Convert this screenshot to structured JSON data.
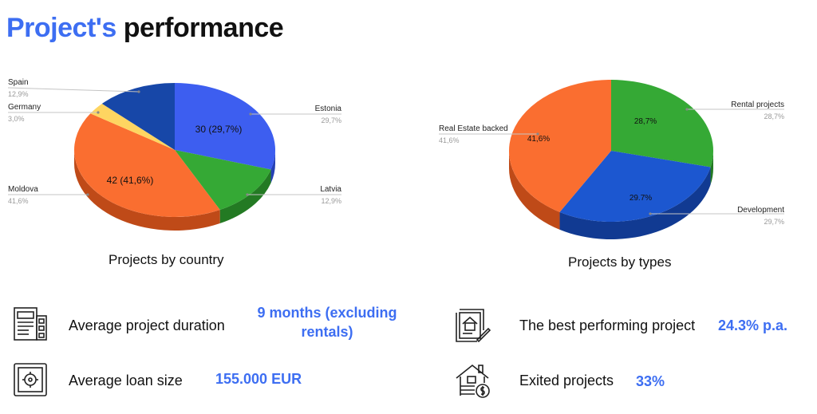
{
  "title": {
    "accent": "Project's",
    "rest": " performance"
  },
  "colors": {
    "accent": "#3d6ef2"
  },
  "chart_data": [
    {
      "type": "pie",
      "title": "Projects by country",
      "slices": [
        {
          "label": "Estonia",
          "value": 30,
          "percent": "29,7%",
          "inside_label": "30 (29,7%)",
          "color": "#3d5ef0",
          "dark": "#2540b5"
        },
        {
          "label": "Latvia",
          "value": 13,
          "percent": "12,9%",
          "inside_label": "",
          "color": "#35a935",
          "dark": "#237a23"
        },
        {
          "label": "Moldova",
          "value": 42,
          "percent": "41,6%",
          "inside_label": "42 (41,6%)",
          "color": "#fa6e30",
          "dark": "#bf4a18"
        },
        {
          "label": "Germany",
          "value": 3,
          "percent": "3,0%",
          "inside_label": "",
          "color": "#fed561",
          "dark": "#c9a43a"
        },
        {
          "label": "Spain",
          "value": 13,
          "percent": "12,9%",
          "inside_label": "",
          "color": "#1747a8",
          "dark": "#0f3079"
        }
      ]
    },
    {
      "type": "pie",
      "title": "Projects by types",
      "slices": [
        {
          "label": "Rental projects",
          "value": 28.7,
          "percent": "28,7%",
          "inside_label": "28,7%",
          "color": "#35a935",
          "dark": "#237a23"
        },
        {
          "label": "Development",
          "value": 29.7,
          "percent": "29,7%",
          "inside_label": "29.7%",
          "color": "#1c57d0",
          "dark": "#113a92"
        },
        {
          "label": "Real Estate backed",
          "value": 41.6,
          "percent": "41,6%",
          "inside_label": "41,6%",
          "color": "#fa6e30",
          "dark": "#bf4a18"
        }
      ]
    }
  ],
  "stats": {
    "duration": {
      "label": "Average project duration",
      "value": "9 months (excluding rentals)",
      "icon": "calendar-icon"
    },
    "loan": {
      "label": "Average loan size",
      "value": "155.000 EUR",
      "icon": "safe-icon"
    },
    "best": {
      "label": "The best performing project",
      "value": "24.3% p.a.",
      "icon": "document-house-icon"
    },
    "exited": {
      "label": "Exited projects",
      "value": "33%",
      "icon": "house-money-icon"
    }
  }
}
